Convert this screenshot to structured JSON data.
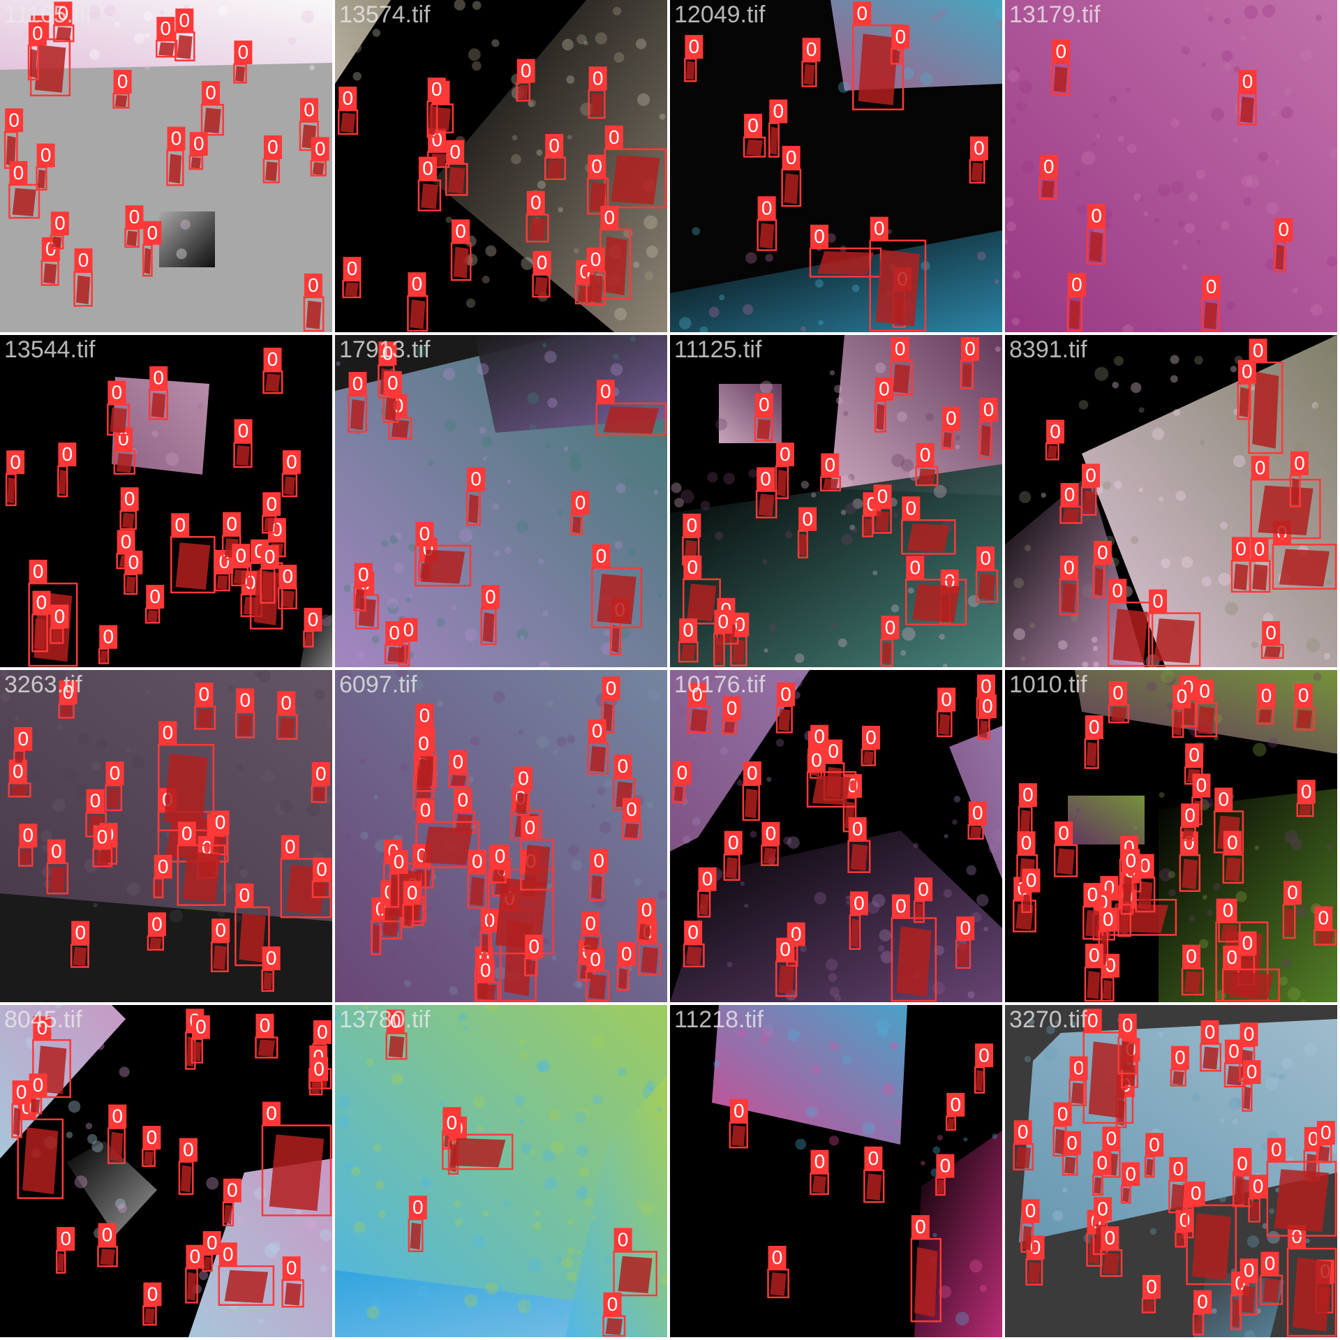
{
  "colors": {
    "box": "#ff3838",
    "mask": "#b3201f",
    "label_text": "#ffffff",
    "grid_line": "#ffffff"
  },
  "tiles": [
    {
      "filename": "11165.tif",
      "background": [
        "#a8a8a8",
        "#000000"
      ],
      "tissue": [
        "#e9c7e3",
        "#ffffff"
      ],
      "detections": 22
    },
    {
      "filename": "13574.tif",
      "background": [
        "#000000",
        "#9a907f"
      ],
      "tissue": [
        "#c9c0b0",
        "#a59c88"
      ],
      "detections": 19
    },
    {
      "filename": "12049.tif",
      "background": [
        "#050505",
        "#2f8fb3"
      ],
      "tissue": [
        "#b26996",
        "#4db3cf"
      ],
      "detections": 12
    },
    {
      "filename": "13179.tif",
      "background": [
        "#7d1d6e",
        "#5a1658"
      ],
      "tissue": [
        "#9b3a86",
        "#c778b0"
      ],
      "detections": 7
    },
    {
      "filename": "13544.tif",
      "background": [
        "#000000",
        "#8a8a8a"
      ],
      "tissue": [
        "#9a6a8f",
        "#c89bb9"
      ],
      "detections": 27
    },
    {
      "filename": "17913.tif",
      "background": [
        "#1a1a1a",
        "#7e5f9e"
      ],
      "tissue": [
        "#b08fcf",
        "#3f7f79"
      ],
      "detections": 16
    },
    {
      "filename": "11125.tif",
      "background": [
        "#000000",
        "#4f8f86"
      ],
      "tissue": [
        "#d9b3cc",
        "#6a3f62"
      ],
      "detections": 24
    },
    {
      "filename": "8391.tif",
      "background": [
        "#000000",
        "#d8a6cf"
      ],
      "tissue": [
        "#f1d6ec",
        "#8b8a72"
      ],
      "detections": 15
    },
    {
      "filename": "3263.tif",
      "background": [
        "#1a1a1a",
        "#3a2f3d"
      ],
      "tissue": [
        "#4d3d4f",
        "#6a5a6d"
      ],
      "detections": 27
    },
    {
      "filename": "6097.tif",
      "background": [
        "#2a1a30",
        "#5b3a66"
      ],
      "tissue": [
        "#6f4a7c",
        "#7a8faa"
      ],
      "detections": 38
    },
    {
      "filename": "10176.tif",
      "background": [
        "#000000",
        "#6f4a7c"
      ],
      "tissue": [
        "#8a5a8f",
        "#a27db5"
      ],
      "detections": 26
    },
    {
      "filename": "1010.tif",
      "background": [
        "#000000",
        "#5a8a2a"
      ],
      "tissue": [
        "#6a3a6a",
        "#7f9f3f"
      ],
      "detections": 37
    },
    {
      "filename": "8045.tif",
      "background": [
        "#000000",
        "#a5a5a5"
      ],
      "tissue": [
        "#b6d7ec",
        "#d9a6d6"
      ],
      "detections": 22
    },
    {
      "filename": "13780.tif",
      "background": [
        "#2fa3df",
        "#7ec0ea"
      ],
      "tissue": [
        "#4fb7e8",
        "#a7cf53"
      ],
      "detections": 7
    },
    {
      "filename": "11218.tif",
      "background": [
        "#000000",
        "#c9307f"
      ],
      "tissue": [
        "#e24fa0",
        "#4fb0d9"
      ],
      "detections": 8
    },
    {
      "filename": "3270.tif",
      "background": [
        "#3b3b3b",
        "#5a8aa5"
      ],
      "tissue": [
        "#6aa0bc",
        "#a7c7d9"
      ],
      "detections": 39
    }
  ],
  "detection_label": "0"
}
